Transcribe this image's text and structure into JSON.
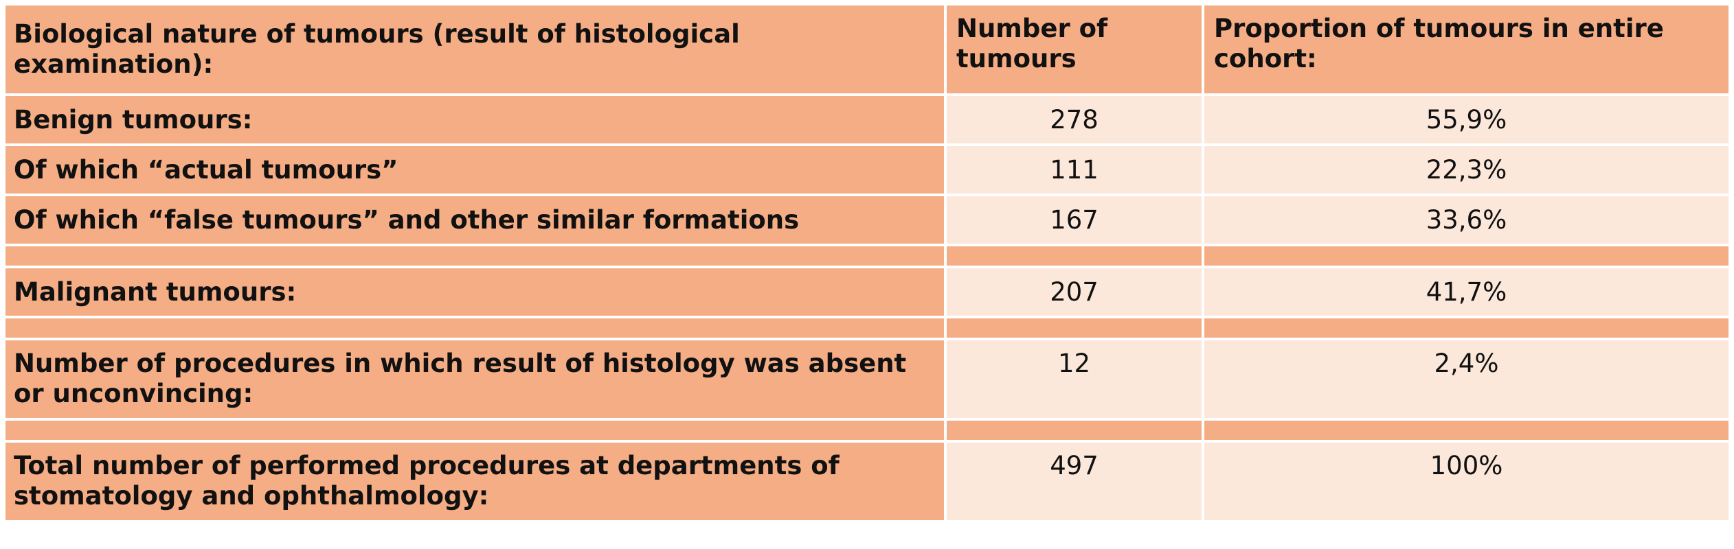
{
  "header": {
    "col1": "Biological nature of tumours (result of histological examination):",
    "col2": "Number of tumours",
    "col3": "Proportion of tumours in entire cohort:"
  },
  "rows": [
    {
      "label": "Benign tumours:",
      "number": "278",
      "proportion": "55,9%"
    },
    {
      "label": "Of which “actual tumours”",
      "number": "111",
      "proportion": "22,3%"
    },
    {
      "label": "Of which “false tumours” and other similar formations",
      "number": "167",
      "proportion": "33,6%"
    },
    {
      "label": "Malignant tumours:",
      "number": "207",
      "proportion": "41,7%"
    },
    {
      "label": "Number of procedures in which result of histology was absent or unconvincing:",
      "number": "12",
      "proportion": "2,4%"
    },
    {
      "label": "Total number of performed procedures at departments of stomatology and ophthalmology:",
      "number": "497",
      "proportion": "100%"
    }
  ],
  "colors": {
    "header_bg": "#f4ad84",
    "value_bg": "#fce8db",
    "grid": "#ffffff"
  }
}
